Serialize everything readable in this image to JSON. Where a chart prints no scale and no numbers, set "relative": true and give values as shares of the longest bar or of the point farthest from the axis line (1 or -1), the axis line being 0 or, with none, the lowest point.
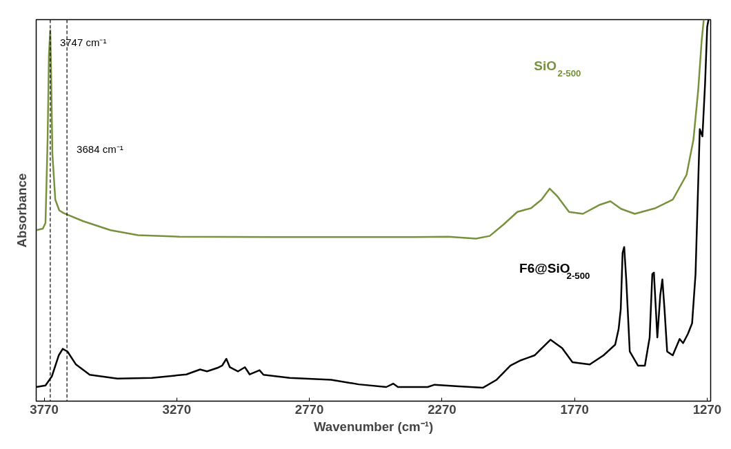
{
  "chart_data": {
    "type": "line",
    "relative": true,
    "xlabel": "Wavenumber (cm⁻¹)",
    "ylabel": "Absorbance",
    "xlim": [
      3800,
      1257
    ],
    "xticks": [
      3770,
      3270,
      2770,
      2270,
      1770,
      1270
    ],
    "grid": false,
    "marker": "none",
    "line_style": "solid",
    "series": [
      {
        "name": "SiO$_{2-500}$",
        "color": "#76923c",
        "x": [
          3800,
          3775,
          3765,
          3757,
          3752,
          3747,
          3744,
          3739,
          3728,
          3713,
          3697,
          3624,
          3520,
          3416,
          3260,
          2896,
          2376,
          2246,
          2142,
          2090,
          2038,
          1986,
          1934,
          1895,
          1864,
          1835,
          1791,
          1739,
          1674,
          1635,
          1595,
          1543,
          1465,
          1400,
          1348,
          1322,
          1304,
          1291,
          1283
        ],
        "values": [
          0.448,
          0.452,
          0.467,
          0.685,
          0.907,
          0.972,
          0.87,
          0.648,
          0.528,
          0.5,
          0.493,
          0.472,
          0.448,
          0.435,
          0.431,
          0.43,
          0.43,
          0.431,
          0.426,
          0.433,
          0.463,
          0.496,
          0.506,
          0.528,
          0.557,
          0.537,
          0.496,
          0.491,
          0.515,
          0.524,
          0.504,
          0.491,
          0.506,
          0.528,
          0.593,
          0.685,
          0.815,
          0.944,
          1.0
        ]
      },
      {
        "name": "F6@SiO$_{2-500}$",
        "color": "#000000",
        "x": [
          3800,
          3765,
          3741,
          3715,
          3700,
          3682,
          3650,
          3598,
          3494,
          3364,
          3234,
          3182,
          3156,
          3117,
          3099,
          3083,
          3070,
          3039,
          3013,
          2995,
          2958,
          2943,
          2844,
          2688,
          2584,
          2480,
          2454,
          2436,
          2324,
          2298,
          2207,
          2116,
          2064,
          2012,
          1973,
          1921,
          1861,
          1817,
          1778,
          1713,
          1661,
          1617,
          1604,
          1596,
          1589,
          1583,
          1575,
          1562,
          1531,
          1505,
          1487,
          1477,
          1471,
          1465,
          1458,
          1447,
          1439,
          1431,
          1421,
          1400,
          1374,
          1361,
          1343,
          1327,
          1314,
          1298,
          1288,
          1278,
          1270,
          1265
        ],
        "values": [
          0.037,
          0.041,
          0.065,
          0.12,
          0.137,
          0.13,
          0.096,
          0.069,
          0.059,
          0.061,
          0.07,
          0.083,
          0.078,
          0.087,
          0.093,
          0.111,
          0.089,
          0.078,
          0.089,
          0.07,
          0.081,
          0.069,
          0.061,
          0.056,
          0.044,
          0.037,
          0.046,
          0.037,
          0.037,
          0.043,
          0.039,
          0.035,
          0.056,
          0.093,
          0.107,
          0.12,
          0.161,
          0.139,
          0.102,
          0.096,
          0.12,
          0.148,
          0.189,
          0.241,
          0.389,
          0.404,
          0.315,
          0.13,
          0.093,
          0.093,
          0.167,
          0.333,
          0.337,
          0.259,
          0.167,
          0.278,
          0.319,
          0.241,
          0.13,
          0.12,
          0.163,
          0.152,
          0.176,
          0.204,
          0.333,
          0.713,
          0.694,
          0.833,
          0.981,
          1.0
        ]
      }
    ],
    "ref_lines": [
      {
        "axis": "x",
        "value": 3747,
        "label": "3747 cm⁻¹",
        "color": "#000000",
        "line_style": "dashed"
      },
      {
        "axis": "x",
        "value": 3684,
        "label": "3684 cm⁻¹",
        "color": "#000000",
        "line_style": "dashed"
      }
    ]
  }
}
